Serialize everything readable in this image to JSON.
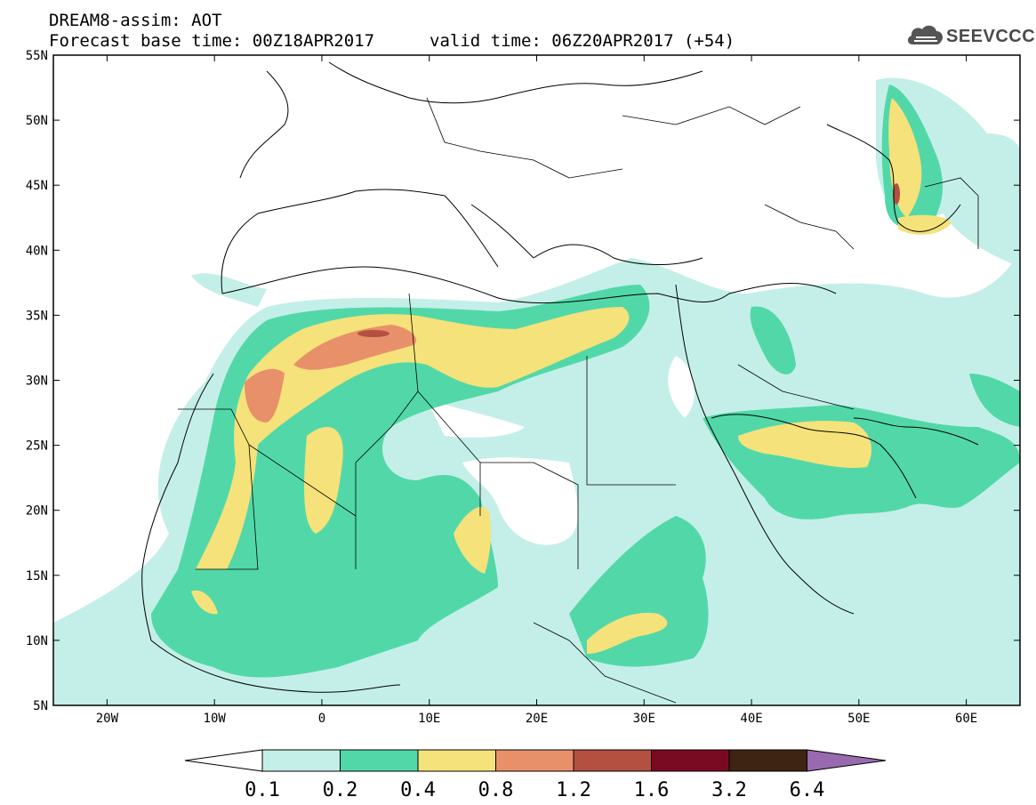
{
  "title": {
    "line1": "DREAM8-assim: AOT",
    "line2": "Forecast base time: 00Z18APR2017",
    "valid": "valid time: 06Z20APR2017 (+54)"
  },
  "logo": {
    "text": "SEEVCCC",
    "icon": "cloud-icon"
  },
  "axes": {
    "lat_labels": [
      "55N",
      "50N",
      "45N",
      "40N",
      "35N",
      "30N",
      "25N",
      "20N",
      "15N",
      "10N",
      "5N"
    ],
    "lon_labels": [
      "20W",
      "10W",
      "0",
      "10E",
      "20E",
      "30E",
      "40E",
      "50E",
      "60E"
    ],
    "lat_range": [
      5,
      55
    ],
    "lon_range": [
      -25,
      65
    ]
  },
  "colorbar": {
    "labels": [
      "0.1",
      "0.2",
      "0.4",
      "0.8",
      "1.2",
      "1.6",
      "3.2",
      "6.4"
    ],
    "colors": [
      "#ffffff",
      "#c4efe8",
      "#52d8a8",
      "#f5e27a",
      "#e8906a",
      "#b45040",
      "#7a0a22",
      "#3e2412",
      "#9a6ab0"
    ]
  }
}
